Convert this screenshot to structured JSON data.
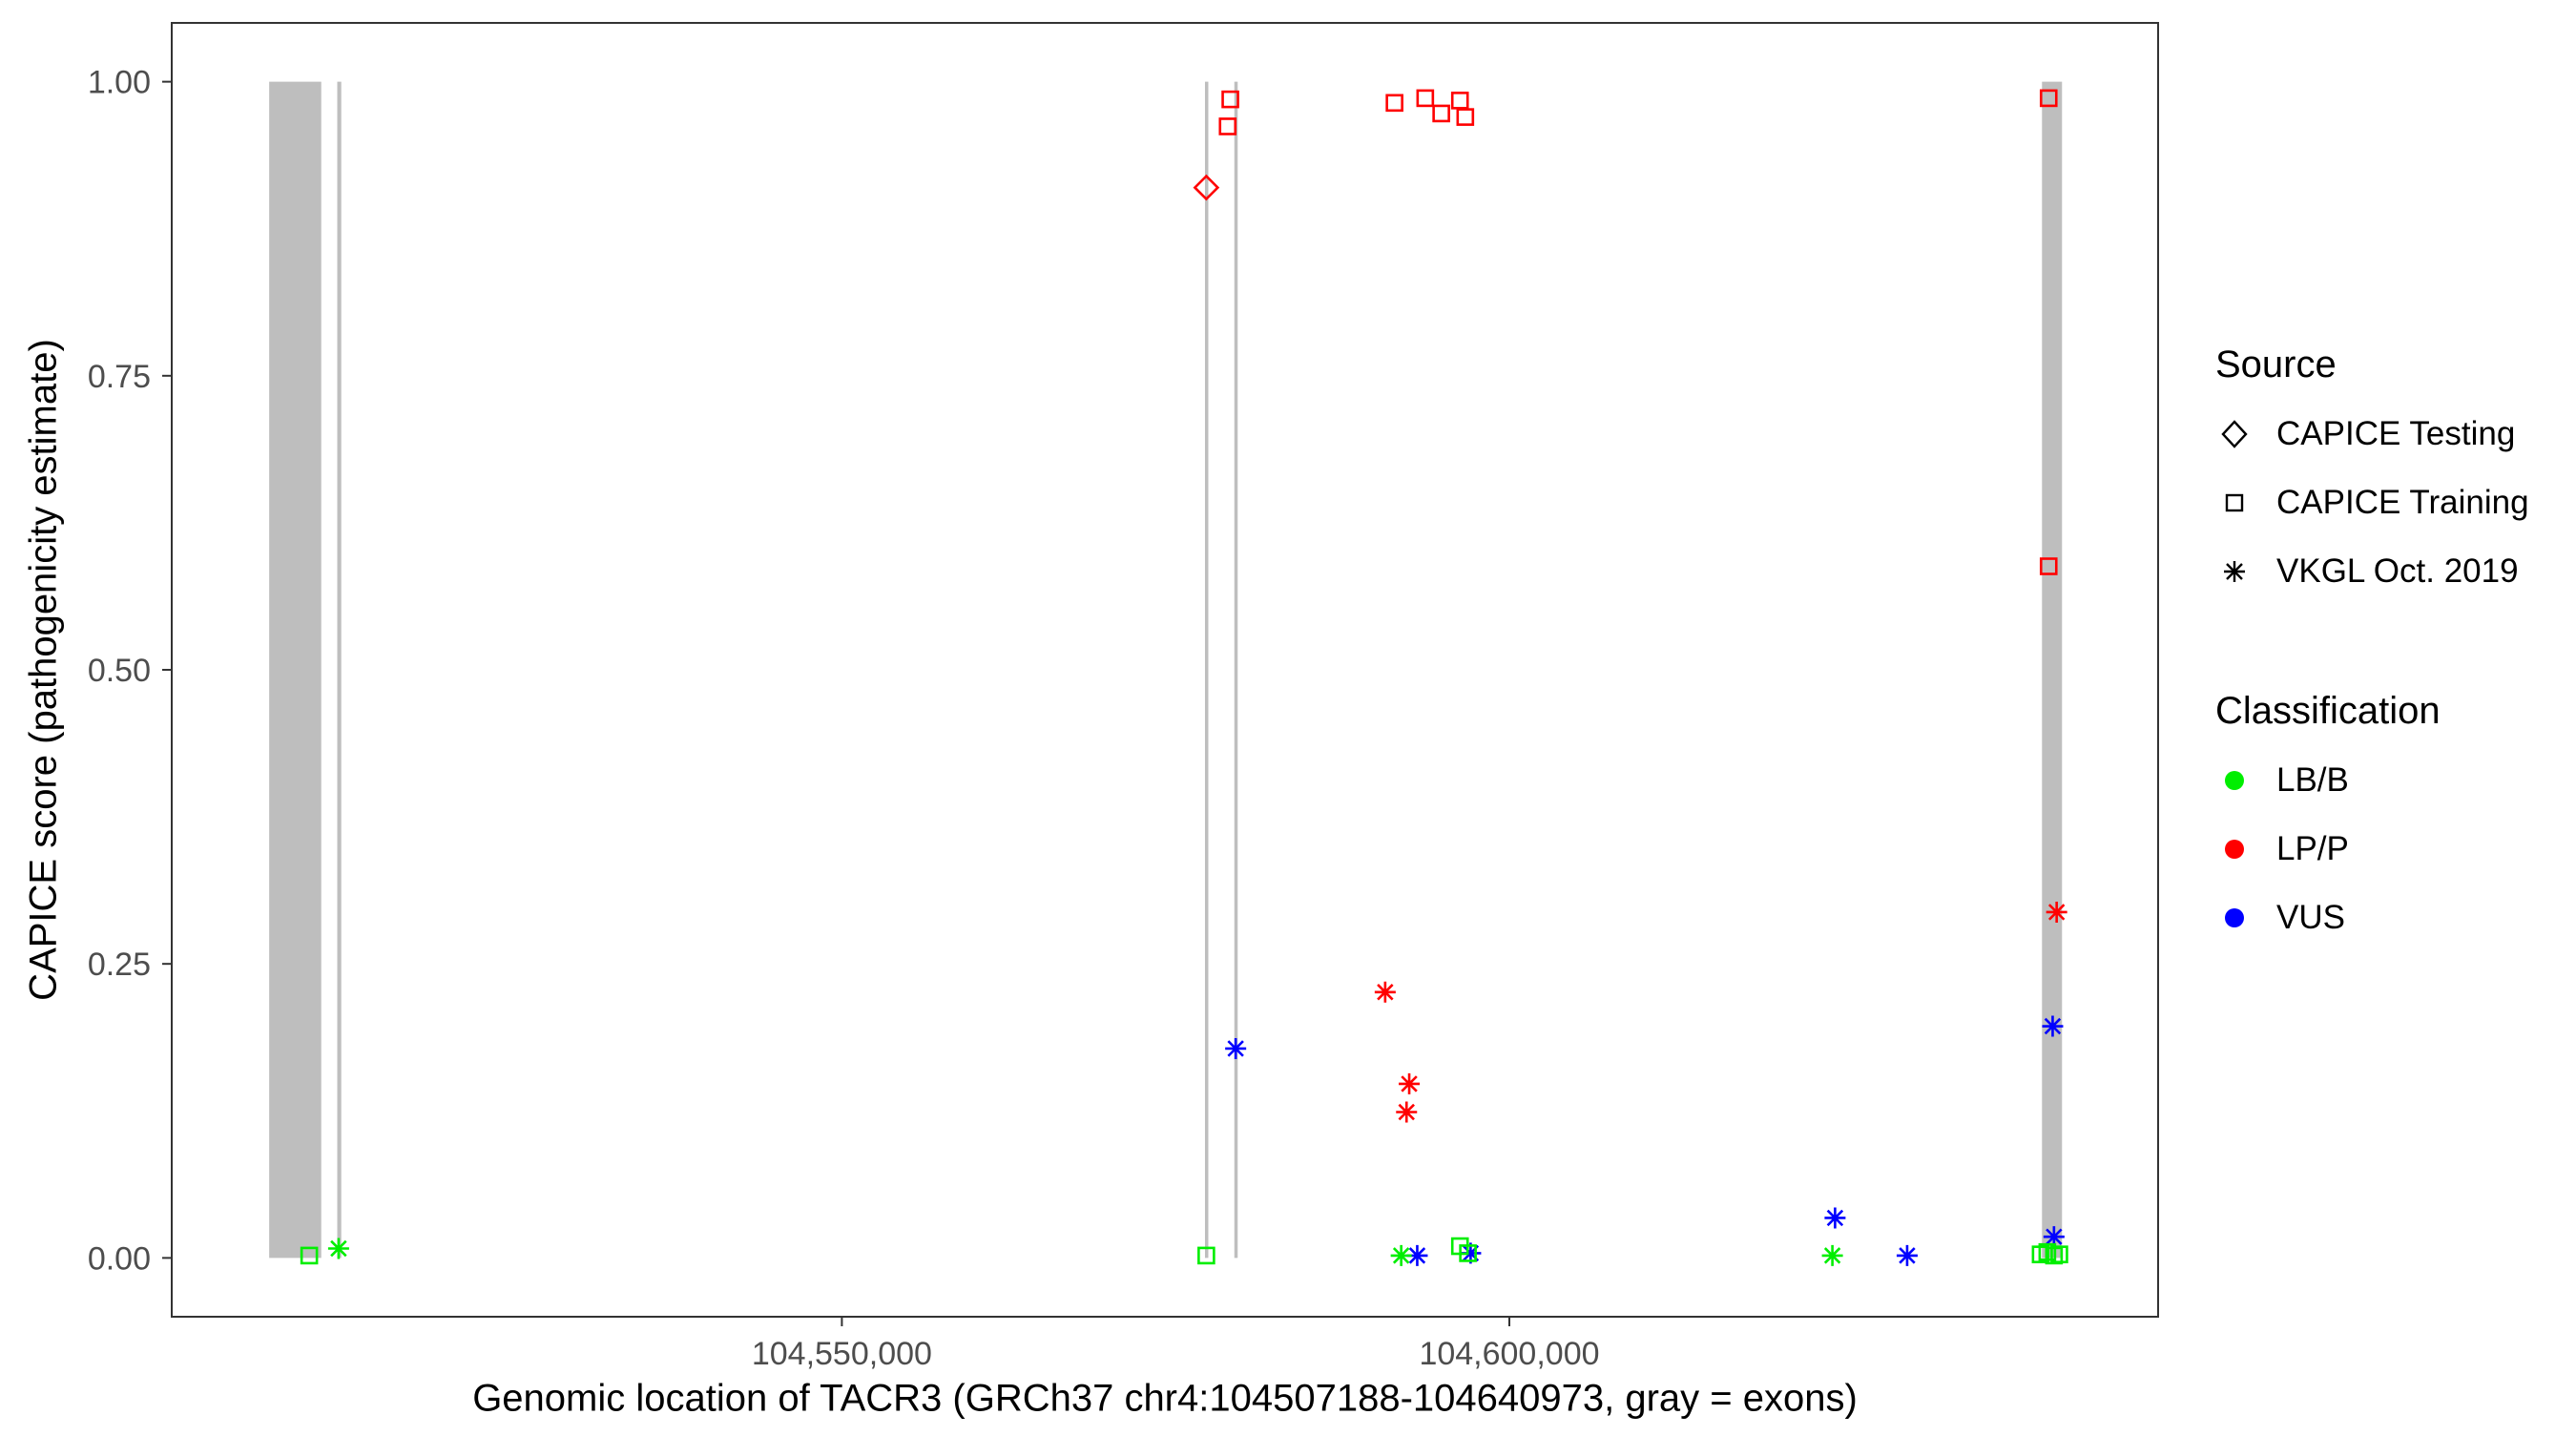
{
  "figure": {
    "xlabel": "Genomic location of TACR3 (GRCh37 chr4:104507188-104640973, gray = exons)",
    "ylabel": "CAPICE score (pathogenicity estimate)"
  },
  "legend": {
    "source": {
      "title": "Source",
      "items": [
        "CAPICE Testing",
        "CAPICE Training",
        "VKGL Oct. 2019"
      ]
    },
    "classification": {
      "title": "Classification",
      "items": [
        "LB/B",
        "LP/P",
        "VUS"
      ],
      "colors": [
        "#00EE00",
        "#FF0000",
        "#0000FF"
      ]
    }
  },
  "chart_data": {
    "type": "scatter",
    "title": "",
    "xlabel": "Genomic location of TACR3 (GRCh37 chr4:104507188-104640973, gray = exons)",
    "ylabel": "CAPICE score (pathogenicity estimate)",
    "xlim": [
      104499800,
      104648600
    ],
    "ylim": [
      -0.05,
      1.05
    ],
    "grid": false,
    "legend_position": "right",
    "exon_color": "#BEBEBE",
    "axis_text_color": "#4D4D4D",
    "colors": {
      "LB/B": "#00EE00",
      "LP/P": "#FF0000",
      "VUS": "#0000FF"
    },
    "xticks": [
      {
        "v": 104550000,
        "label": "104,550,000"
      },
      {
        "v": 104600000,
        "label": "104,600,000"
      }
    ],
    "yticks": [
      {
        "v": 0.0,
        "label": "0.00"
      },
      {
        "v": 0.25,
        "label": "0.25"
      },
      {
        "v": 0.5,
        "label": "0.50"
      },
      {
        "v": 0.75,
        "label": "0.75"
      },
      {
        "v": 1.0,
        "label": "1.00"
      }
    ],
    "exons": [
      [
        104507100,
        104511000
      ],
      [
        104512200,
        104512500
      ],
      [
        104577200,
        104577450
      ],
      [
        104579400,
        104579650
      ],
      [
        104639900,
        104641400
      ]
    ],
    "points": [
      {
        "x": 104577300,
        "y": 0.91,
        "shape": "diamond",
        "cls": "LP/P"
      },
      {
        "x": 104578900,
        "y": 0.962,
        "shape": "square",
        "cls": "LP/P"
      },
      {
        "x": 104579100,
        "y": 0.985,
        "shape": "square",
        "cls": "LP/P"
      },
      {
        "x": 104591400,
        "y": 0.982,
        "shape": "square",
        "cls": "LP/P"
      },
      {
        "x": 104593700,
        "y": 0.986,
        "shape": "square",
        "cls": "LP/P"
      },
      {
        "x": 104594900,
        "y": 0.973,
        "shape": "square",
        "cls": "LP/P"
      },
      {
        "x": 104596300,
        "y": 0.984,
        "shape": "square",
        "cls": "LP/P"
      },
      {
        "x": 104596700,
        "y": 0.97,
        "shape": "square",
        "cls": "LP/P"
      },
      {
        "x": 104640400,
        "y": 0.986,
        "shape": "square",
        "cls": "LP/P"
      },
      {
        "x": 104640400,
        "y": 0.588,
        "shape": "square",
        "cls": "LP/P"
      },
      {
        "x": 104590700,
        "y": 0.226,
        "shape": "asterisk",
        "cls": "LP/P"
      },
      {
        "x": 104592500,
        "y": 0.148,
        "shape": "asterisk",
        "cls": "LP/P"
      },
      {
        "x": 104592300,
        "y": 0.124,
        "shape": "asterisk",
        "cls": "LP/P"
      },
      {
        "x": 104641000,
        "y": 0.294,
        "shape": "asterisk",
        "cls": "LP/P"
      },
      {
        "x": 104579500,
        "y": 0.178,
        "shape": "asterisk",
        "cls": "VUS"
      },
      {
        "x": 104640700,
        "y": 0.197,
        "shape": "asterisk",
        "cls": "VUS"
      },
      {
        "x": 104640800,
        "y": 0.018,
        "shape": "asterisk",
        "cls": "VUS"
      },
      {
        "x": 104624400,
        "y": 0.034,
        "shape": "asterisk",
        "cls": "VUS"
      },
      {
        "x": 104629800,
        "y": 0.002,
        "shape": "asterisk",
        "cls": "VUS"
      },
      {
        "x": 104593100,
        "y": 0.002,
        "shape": "asterisk",
        "cls": "VUS"
      },
      {
        "x": 104597100,
        "y": 0.004,
        "shape": "asterisk",
        "cls": "VUS"
      },
      {
        "x": 104512300,
        "y": 0.008,
        "shape": "asterisk",
        "cls": "LB/B"
      },
      {
        "x": 104591900,
        "y": 0.002,
        "shape": "asterisk",
        "cls": "LB/B"
      },
      {
        "x": 104624200,
        "y": 0.002,
        "shape": "asterisk",
        "cls": "LB/B"
      },
      {
        "x": 104510100,
        "y": 0.002,
        "shape": "square",
        "cls": "LB/B"
      },
      {
        "x": 104577300,
        "y": 0.002,
        "shape": "square",
        "cls": "LB/B"
      },
      {
        "x": 104596300,
        "y": 0.01,
        "shape": "square",
        "cls": "LB/B"
      },
      {
        "x": 104596900,
        "y": 0.004,
        "shape": "square",
        "cls": "LB/B"
      },
      {
        "x": 104639800,
        "y": 0.003,
        "shape": "square",
        "cls": "LB/B"
      },
      {
        "x": 104640300,
        "y": 0.005,
        "shape": "square",
        "cls": "LB/B"
      },
      {
        "x": 104640800,
        "y": 0.002,
        "shape": "square",
        "cls": "LB/B"
      },
      {
        "x": 104641200,
        "y": 0.003,
        "shape": "square",
        "cls": "LB/B"
      }
    ]
  }
}
